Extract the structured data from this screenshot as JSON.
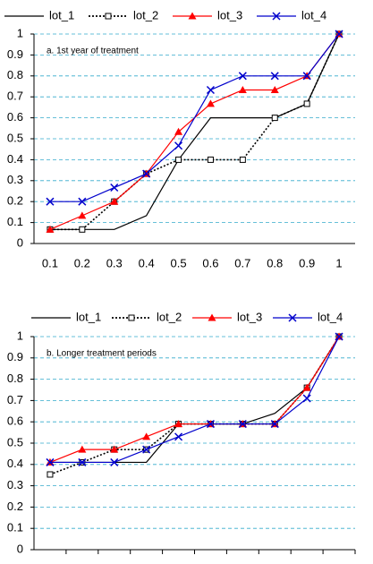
{
  "chart_data": [
    {
      "type": "line",
      "annotation": "a. 1st year of treatment",
      "categories": [
        "0.1",
        "0.2",
        "0.3",
        "0.4",
        "0.5",
        "0.6",
        "0.7",
        "0.8",
        "0.9",
        "1"
      ],
      "ylim": [
        0,
        1
      ],
      "yticks": [
        0,
        0.1,
        0.2,
        0.3,
        0.4,
        0.5,
        0.6,
        0.7,
        0.8,
        0.9,
        1
      ],
      "grid": true,
      "legend": "top",
      "series": [
        {
          "name": "lot_1",
          "color": "#000000",
          "dash": "solid",
          "marker": "none",
          "values": [
            0.067,
            0.067,
            0.067,
            0.133,
            0.4,
            0.6,
            0.6,
            0.6,
            0.667,
            1
          ]
        },
        {
          "name": "lot_2",
          "color": "#000000",
          "dash": "dotted",
          "marker": "square",
          "values": [
            0.067,
            0.067,
            0.2,
            0.333,
            0.4,
            0.4,
            0.4,
            0.6,
            0.667,
            1
          ]
        },
        {
          "name": "lot_3",
          "color": "#ff0000",
          "dash": "solid",
          "marker": "triangle",
          "values": [
            0.067,
            0.133,
            0.2,
            0.333,
            0.533,
            0.667,
            0.733,
            0.733,
            0.8,
            1
          ]
        },
        {
          "name": "lot_4",
          "color": "#0000cc",
          "dash": "solid",
          "marker": "x",
          "values": [
            0.2,
            0.2,
            0.267,
            0.333,
            0.467,
            0.733,
            0.8,
            0.8,
            0.8,
            1
          ]
        }
      ]
    },
    {
      "type": "line",
      "annotation": "b. Longer treatment periods",
      "categories": [
        null,
        null,
        null,
        null,
        null,
        null,
        null,
        null,
        null,
        null
      ],
      "ylim": [
        0,
        1
      ],
      "yticks": [
        0,
        0.1,
        0.2,
        0.3,
        0.4,
        0.5,
        0.6,
        0.7,
        0.8,
        0.9,
        1
      ],
      "grid": true,
      "legend": "top",
      "series": [
        {
          "name": "lot_1",
          "color": "#000000",
          "dash": "solid",
          "marker": "none",
          "values": [
            0.41,
            0.41,
            0.41,
            0.41,
            0.59,
            0.59,
            0.59,
            0.64,
            0.76,
            1
          ]
        },
        {
          "name": "lot_2",
          "color": "#000000",
          "dash": "dotted",
          "marker": "square",
          "values": [
            0.353,
            0.41,
            0.47,
            0.47,
            0.59,
            0.59,
            0.59,
            0.59,
            0.76,
            1
          ]
        },
        {
          "name": "lot_3",
          "color": "#ff0000",
          "dash": "solid",
          "marker": "triangle",
          "values": [
            0.41,
            0.47,
            0.47,
            0.53,
            0.59,
            0.59,
            0.59,
            0.59,
            0.76,
            1
          ]
        },
        {
          "name": "lot_4",
          "color": "#0000cc",
          "dash": "solid",
          "marker": "x",
          "values": [
            0.41,
            0.41,
            0.41,
            0.47,
            0.53,
            0.59,
            0.59,
            0.59,
            0.71,
            1
          ]
        }
      ]
    }
  ]
}
